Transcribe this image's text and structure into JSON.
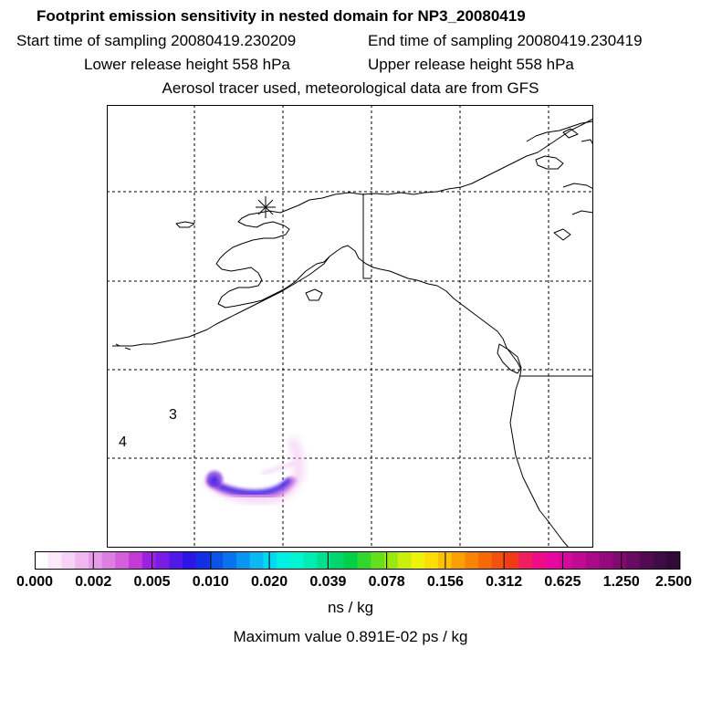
{
  "titles": {
    "main": "Footprint emission sensitivity in nested domain for NP3_20080419",
    "start": "Start time of sampling 20080419.230209",
    "end": "End time of sampling 20080419.230419",
    "lower": "Lower release height  558 hPa",
    "upper": "Upper release height  558 hPa",
    "tracer": "Aerosol tracer used, meteorological data are from GFS"
  },
  "map": {
    "markers": [
      "3",
      "4"
    ],
    "plume_color": "#5a2ee0"
  },
  "colorbar": {
    "ticks": [
      "0.000",
      "0.002",
      "0.005",
      "0.010",
      "0.020",
      "0.039",
      "0.078",
      "0.156",
      "0.312",
      "0.625",
      "1.250",
      "2.500"
    ],
    "colors": [
      "#ffffff",
      "#fbe8fb",
      "#f6d2f6",
      "#f0b8f0",
      "#e79be9",
      "#dd7ee1",
      "#d35fdb",
      "#c43ad7",
      "#9d22e0",
      "#7a1ce6",
      "#5218e8",
      "#2f14e6",
      "#1230e2",
      "#0a52e8",
      "#0a72ee",
      "#0a95f2",
      "#0ab8f5",
      "#00d8f2",
      "#00f0e6",
      "#00f5d0",
      "#00ecb2",
      "#00e08e",
      "#00d66a",
      "#00d047",
      "#2fd82a",
      "#62e01a",
      "#9ae812",
      "#c9ef0e",
      "#eef20a",
      "#fbde08",
      "#fcc006",
      "#fba004",
      "#f98404",
      "#f66a06",
      "#f3520c",
      "#f03a16",
      "#f02060",
      "#f00c86",
      "#e608a0",
      "#d40a9c",
      "#c00a92",
      "#aa0a88",
      "#940a7c",
      "#800a70",
      "#6a0a62",
      "#540a52",
      "#400a44",
      "#320a38"
    ],
    "units": "ns / kg",
    "max_value": "Maximum value  0.891E-02 ps / kg"
  }
}
